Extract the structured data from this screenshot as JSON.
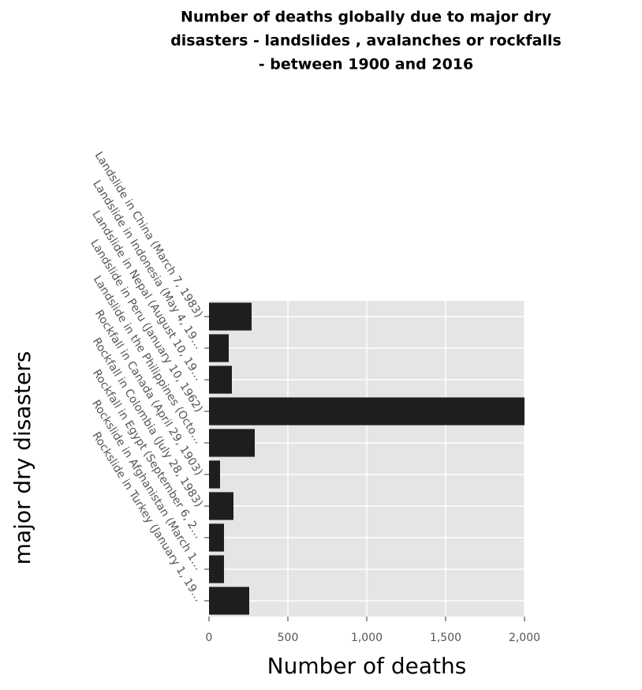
{
  "chart_data": {
    "type": "hbar",
    "title": [
      "Number of deaths globally due to major dry",
      "disasters - landslides , avalanches or rockfalls",
      "- between 1900 and 2016"
    ],
    "x_label": "Number of deaths",
    "y_label": "major dry disasters",
    "categories": [
      "Landslide in China (March 7, 1983)",
      "Landslide in Indonesia (May 4, 19…",
      "Landslide in Nepal (August 10, 19…",
      "Landslide in Peru (January 10, 1962)",
      "Landslide in the Philippines (Octo…",
      "Rockfall in Canada (April 29, 1903)",
      "Rockfall in Colombia (July 28, 1983)",
      "Rockfall in Egypt (September 6, 2…",
      "Rockslide in Afghanistan (March 1…",
      "Rockslide in Turkey (January 1, 19…"
    ],
    "values": [
      270,
      125,
      145,
      2000,
      290,
      70,
      155,
      95,
      95,
      255
    ],
    "color": "#1e1e1e",
    "xlim": [
      0,
      2000
    ],
    "xticks": [
      0,
      500,
      {
        "value": 1000,
        "label": "1,000"
      },
      {
        "value": 1500,
        "label": "1,500"
      },
      {
        "value": 2000,
        "label": "2,000"
      }
    ],
    "grid": true
  }
}
